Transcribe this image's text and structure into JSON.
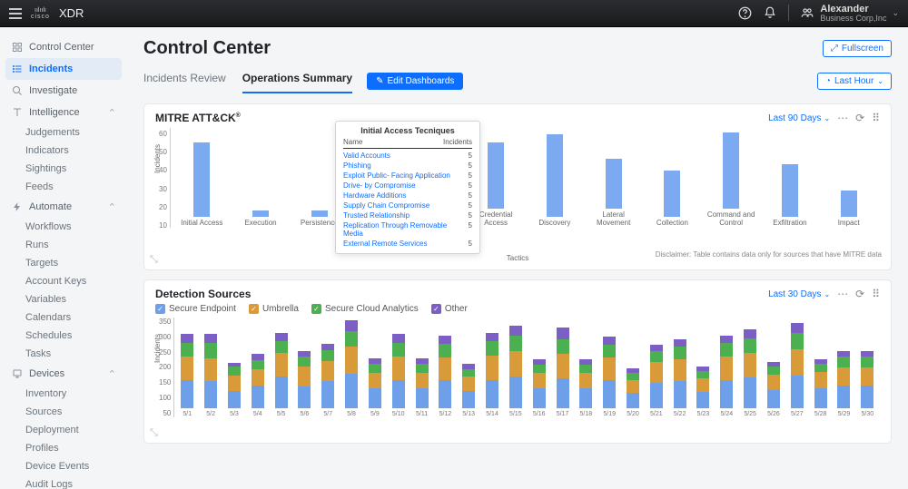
{
  "topbar": {
    "product": "XDR",
    "cisco": "cisco",
    "user_name": "Alexander",
    "user_company": "Business Corp,Inc"
  },
  "sidebar": {
    "items": [
      {
        "label": "Control Center",
        "icon": "grid"
      },
      {
        "label": "Incidents",
        "icon": "list",
        "active": true
      },
      {
        "label": "Investigate",
        "icon": "search"
      }
    ],
    "groups": [
      {
        "label": "Intelligence",
        "icon": "book",
        "children": [
          "Judgements",
          "Indicators",
          "Sightings",
          "Feeds"
        ]
      },
      {
        "label": "Automate",
        "icon": "bolt",
        "children": [
          "Workflows",
          "Runs",
          "Targets",
          "Account Keys",
          "Variables",
          "Calendars",
          "Schedules",
          "Tasks"
        ]
      },
      {
        "label": "Devices",
        "icon": "device",
        "children": [
          "Inventory",
          "Sources",
          "Deployment",
          "Profiles",
          "Device Events",
          "Audit Logs"
        ]
      }
    ]
  },
  "page": {
    "title": "Control Center",
    "fullscreen": "Fullscreen",
    "tabs": [
      "Incidents Review",
      "Operations Summary"
    ],
    "active_tab": 1,
    "edit_btn": "Edit Dashboards",
    "last_hour": "Last Hour"
  },
  "mitre": {
    "title": "MITRE ATT&CK",
    "range": "Last 90 Days",
    "ylabel": "Incidents",
    "xlabel": "Tactics",
    "ymax": 60,
    "yticks": [
      60,
      50,
      40,
      30,
      20,
      10
    ],
    "bar_color": "#7caaf1",
    "bars": [
      {
        "label": "Initial Access",
        "value": 45
      },
      {
        "label": "Execution",
        "value": 4
      },
      {
        "label": "Persistence",
        "value": 4
      },
      {
        "label": "Privilege Escalation",
        "value": 52
      },
      {
        "label": "Defense Evasion",
        "value": 8
      },
      {
        "label": "Credential Access",
        "value": 40
      },
      {
        "label": "Discovery",
        "value": 50
      },
      {
        "label": "Lateral Movement",
        "value": 30
      },
      {
        "label": "Collection",
        "value": 28
      },
      {
        "label": "Command and Control",
        "value": 46
      },
      {
        "label": "Exfiltration",
        "value": 32
      },
      {
        "label": "Impact",
        "value": 16
      }
    ],
    "popover": {
      "title": "Initial Access Tecniques",
      "col_name": "Name",
      "col_inc": "Incidents",
      "rows": [
        {
          "name": "Valid Accounts",
          "n": "5"
        },
        {
          "name": "Phishing",
          "n": "5"
        },
        {
          "name": "Exploit Public- Facing Application",
          "n": "5"
        },
        {
          "name": "Drive- by Compromise",
          "n": "5"
        },
        {
          "name": "Hardware Additions",
          "n": "5"
        },
        {
          "name": "Supply Chain Compromise",
          "n": "5"
        },
        {
          "name": "Trusted Relationship",
          "n": "5"
        },
        {
          "name": "Replication Through Removable Media",
          "n": "5"
        },
        {
          "name": "External Remote Services",
          "n": "5"
        }
      ]
    },
    "disclaimer": "Disclaimer: Table contains data only for sources that have MITRE data"
  },
  "detection": {
    "title": "Detection Sources",
    "range": "Last 30 Days",
    "ylabel": "Incidents",
    "ymax": 350,
    "yticks": [
      350,
      300,
      250,
      200,
      150,
      100,
      50
    ],
    "legend": [
      {
        "label": "Secure Endpoint",
        "color": "#6ea0ea"
      },
      {
        "label": "Umbrella",
        "color": "#d99a3a"
      },
      {
        "label": "Secure Cloud Analytics",
        "color": "#4caf50"
      },
      {
        "label": "Other",
        "color": "#7b5fc5"
      }
    ],
    "days": [
      {
        "d": "5/1",
        "v": [
          100,
          80,
          50,
          30
        ]
      },
      {
        "d": "5/2",
        "v": [
          95,
          80,
          55,
          30
        ]
      },
      {
        "d": "5/3",
        "v": [
          60,
          55,
          30,
          15
        ]
      },
      {
        "d": "5/4",
        "v": [
          80,
          58,
          30,
          22
        ]
      },
      {
        "d": "5/5",
        "v": [
          110,
          85,
          40,
          30
        ]
      },
      {
        "d": "5/6",
        "v": [
          75,
          70,
          35,
          20
        ]
      },
      {
        "d": "5/7",
        "v": [
          95,
          70,
          40,
          20
        ]
      },
      {
        "d": "5/8",
        "v": [
          120,
          95,
          55,
          40
        ]
      },
      {
        "d": "5/9",
        "v": [
          70,
          55,
          30,
          20
        ]
      },
      {
        "d": "5/10",
        "v": [
          100,
          80,
          50,
          30
        ]
      },
      {
        "d": "5/11",
        "v": [
          70,
          55,
          30,
          20
        ]
      },
      {
        "d": "5/12",
        "v": [
          100,
          78,
          48,
          30
        ]
      },
      {
        "d": "5/13",
        "v": [
          60,
          50,
          28,
          18
        ]
      },
      {
        "d": "5/14",
        "v": [
          100,
          85,
          50,
          30
        ]
      },
      {
        "d": "5/15",
        "v": [
          110,
          90,
          55,
          35
        ]
      },
      {
        "d": "5/16",
        "v": [
          70,
          55,
          28,
          18
        ]
      },
      {
        "d": "5/17",
        "v": [
          105,
          85,
          52,
          40
        ]
      },
      {
        "d": "5/18",
        "v": [
          70,
          55,
          28,
          18
        ]
      },
      {
        "d": "5/19",
        "v": [
          100,
          78,
          46,
          28
        ]
      },
      {
        "d": "5/20",
        "v": [
          55,
          45,
          25,
          15
        ]
      },
      {
        "d": "5/21",
        "v": [
          90,
          72,
          40,
          22
        ]
      },
      {
        "d": "5/22",
        "v": [
          95,
          76,
          44,
          26
        ]
      },
      {
        "d": "5/23",
        "v": [
          58,
          48,
          26,
          16
        ]
      },
      {
        "d": "5/24",
        "v": [
          100,
          80,
          48,
          28
        ]
      },
      {
        "d": "5/25",
        "v": [
          108,
          86,
          52,
          30
        ]
      },
      {
        "d": "5/26",
        "v": [
          65,
          52,
          28,
          18
        ]
      },
      {
        "d": "5/27",
        "v": [
          116,
          92,
          56,
          36
        ]
      },
      {
        "d": "5/28",
        "v": [
          70,
          56,
          30,
          16
        ]
      },
      {
        "d": "5/29",
        "v": [
          80,
          64,
          36,
          20
        ]
      },
      {
        "d": "5/30",
        "v": [
          80,
          64,
          36,
          20
        ]
      }
    ]
  }
}
